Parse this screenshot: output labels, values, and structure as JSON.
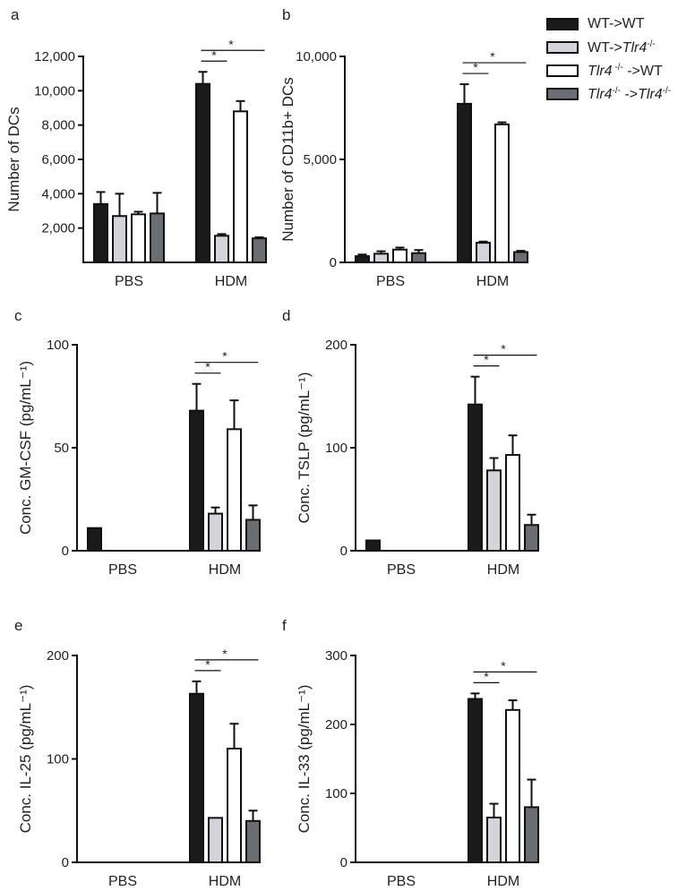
{
  "colors": {
    "WT_WT": "#1a1a1a",
    "WT_Tlr4": "#d2d4d9",
    "Tlr4_WT": "#ffffff",
    "Tlr4_Tlr4": "#6a6e72",
    "outline": "#111111"
  },
  "legend": [
    {
      "key": "WT_WT",
      "parts": [
        {
          "t": "WT->WT"
        }
      ]
    },
    {
      "key": "WT_Tlr4",
      "parts": [
        {
          "t": "WT->"
        },
        {
          "t": "Tlr4",
          "i": true
        },
        {
          "t": "-/-",
          "sup": true
        }
      ]
    },
    {
      "key": "Tlr4_WT",
      "parts": [
        {
          "t": "Tlr4",
          "i": true
        },
        {
          "t": " -/-",
          "sup": true
        },
        {
          "t": " ->WT"
        }
      ]
    },
    {
      "key": "Tlr4_Tlr4",
      "parts": [
        {
          "t": "Tlr4",
          "i": true
        },
        {
          "t": "-/-",
          "sup": true
        },
        {
          "t": " ->"
        },
        {
          "t": "Tlr4",
          "i": true
        },
        {
          "t": "-/-",
          "sup": true
        }
      ]
    }
  ],
  "chart_data": [
    {
      "panel": "a",
      "type": "bar",
      "categories": [
        "PBS",
        "HDM"
      ],
      "ylabel": "Number of DCs",
      "ylim": [
        0,
        12000
      ],
      "yticks": [
        2000,
        4000,
        6000,
        8000,
        10000,
        12000
      ],
      "ytick_labels": [
        "2,000",
        "4,000",
        "6,000",
        "8,000",
        "10,000",
        "12,000"
      ],
      "series": [
        {
          "key": "WT_WT",
          "values": [
            3400,
            10400
          ],
          "errors": [
            700,
            700
          ]
        },
        {
          "key": "WT_Tlr4",
          "values": [
            2700,
            1550
          ],
          "errors": [
            1300,
            100
          ]
        },
        {
          "key": "Tlr4_WT",
          "values": [
            2800,
            8800
          ],
          "errors": [
            150,
            600
          ]
        },
        {
          "key": "Tlr4_Tlr4",
          "values": [
            2850,
            1400
          ],
          "errors": [
            1200,
            60
          ]
        }
      ],
      "significance": [
        {
          "label": "*",
          "from": "WT_WT",
          "to": "WT_Tlr4"
        },
        {
          "label": "*",
          "from": "WT_WT",
          "to": "Tlr4_Tlr4"
        }
      ]
    },
    {
      "panel": "b",
      "type": "bar",
      "categories": [
        "PBS",
        "HDM"
      ],
      "ylabel": "Number of CD11b+ DCs",
      "ylim": [
        0,
        10000
      ],
      "yticks": [
        0,
        5000,
        10000
      ],
      "ytick_labels": [
        "0",
        "5,000",
        "10,000"
      ],
      "series": [
        {
          "key": "WT_WT",
          "values": [
            300,
            7700
          ],
          "errors": [
            80,
            950
          ]
        },
        {
          "key": "WT_Tlr4",
          "values": [
            420,
            950
          ],
          "errors": [
            120,
            60
          ]
        },
        {
          "key": "Tlr4_WT",
          "values": [
            620,
            6700
          ],
          "errors": [
            100,
            100
          ]
        },
        {
          "key": "Tlr4_Tlr4",
          "values": [
            450,
            500
          ],
          "errors": [
            150,
            60
          ]
        }
      ],
      "significance": [
        {
          "label": "*",
          "from": "WT_WT",
          "to": "WT_Tlr4"
        },
        {
          "label": "*",
          "from": "WT_WT",
          "to": "Tlr4_Tlr4"
        }
      ]
    },
    {
      "panel": "c",
      "type": "bar",
      "categories": [
        "PBS",
        "HDM"
      ],
      "ylabel": "Conc. GM-CSF (pg/mL⁻¹)",
      "ylim": [
        0,
        100
      ],
      "yticks": [
        0,
        50,
        100
      ],
      "ytick_labels": [
        "0",
        "50",
        "100"
      ],
      "series": [
        {
          "key": "WT_WT",
          "values": [
            11,
            68
          ],
          "errors": [
            0,
            13
          ]
        },
        {
          "key": "WT_Tlr4",
          "values": [
            0,
            18
          ],
          "errors": [
            0,
            3
          ]
        },
        {
          "key": "Tlr4_WT",
          "values": [
            0,
            59
          ],
          "errors": [
            0,
            14
          ]
        },
        {
          "key": "Tlr4_Tlr4",
          "values": [
            0,
            15
          ],
          "errors": [
            0,
            7
          ]
        }
      ],
      "significance": [
        {
          "label": "*",
          "from": "WT_WT",
          "to": "WT_Tlr4"
        },
        {
          "label": "*",
          "from": "WT_WT",
          "to": "Tlr4_Tlr4"
        }
      ]
    },
    {
      "panel": "d",
      "type": "bar",
      "categories": [
        "PBS",
        "HDM"
      ],
      "ylabel": "Conc. TSLP (pg/mL⁻¹)",
      "ylim": [
        0,
        200
      ],
      "yticks": [
        0,
        100,
        200
      ],
      "ytick_labels": [
        "0",
        "100",
        "200"
      ],
      "series": [
        {
          "key": "WT_WT",
          "values": [
            10,
            142
          ],
          "errors": [
            0,
            27
          ]
        },
        {
          "key": "WT_Tlr4",
          "values": [
            0,
            78
          ],
          "errors": [
            0,
            12
          ]
        },
        {
          "key": "Tlr4_WT",
          "values": [
            0,
            93
          ],
          "errors": [
            0,
            19
          ]
        },
        {
          "key": "Tlr4_Tlr4",
          "values": [
            0,
            25
          ],
          "errors": [
            0,
            10
          ]
        }
      ],
      "significance": [
        {
          "label": "*",
          "from": "WT_WT",
          "to": "WT_Tlr4"
        },
        {
          "label": "*",
          "from": "WT_WT",
          "to": "Tlr4_Tlr4"
        }
      ]
    },
    {
      "panel": "e",
      "type": "bar",
      "categories": [
        "PBS",
        "HDM"
      ],
      "ylabel": "Conc. IL-25 (pg/mL⁻¹)",
      "ylim": [
        0,
        200
      ],
      "yticks": [
        0,
        100,
        200
      ],
      "ytick_labels": [
        "0",
        "100",
        "200"
      ],
      "series": [
        {
          "key": "WT_WT",
          "values": [
            0,
            163
          ],
          "errors": [
            0,
            12
          ]
        },
        {
          "key": "WT_Tlr4",
          "values": [
            0,
            43
          ],
          "errors": [
            0,
            0
          ]
        },
        {
          "key": "Tlr4_WT",
          "values": [
            0,
            110
          ],
          "errors": [
            0,
            24
          ]
        },
        {
          "key": "Tlr4_Tlr4",
          "values": [
            0,
            40
          ],
          "errors": [
            0,
            10
          ]
        }
      ],
      "significance": [
        {
          "label": "*",
          "from": "WT_WT",
          "to": "WT_Tlr4"
        },
        {
          "label": "*",
          "from": "WT_WT",
          "to": "Tlr4_Tlr4"
        }
      ]
    },
    {
      "panel": "f",
      "type": "bar",
      "categories": [
        "PBS",
        "HDM"
      ],
      "ylabel": "Conc. IL-33 (pg/mL⁻¹)",
      "ylim": [
        0,
        300
      ],
      "yticks": [
        0,
        100,
        200,
        300
      ],
      "ytick_labels": [
        "0",
        "100",
        "200",
        "300"
      ],
      "series": [
        {
          "key": "WT_WT",
          "values": [
            0,
            237
          ],
          "errors": [
            0,
            8
          ]
        },
        {
          "key": "WT_Tlr4",
          "values": [
            0,
            65
          ],
          "errors": [
            0,
            20
          ]
        },
        {
          "key": "Tlr4_WT",
          "values": [
            0,
            221
          ],
          "errors": [
            0,
            14
          ]
        },
        {
          "key": "Tlr4_Tlr4",
          "values": [
            0,
            80
          ],
          "errors": [
            0,
            40
          ]
        }
      ],
      "significance": [
        {
          "label": "*",
          "from": "WT_WT",
          "to": "WT_Tlr4"
        },
        {
          "label": "*",
          "from": "WT_WT",
          "to": "Tlr4_Tlr4"
        }
      ]
    }
  ]
}
